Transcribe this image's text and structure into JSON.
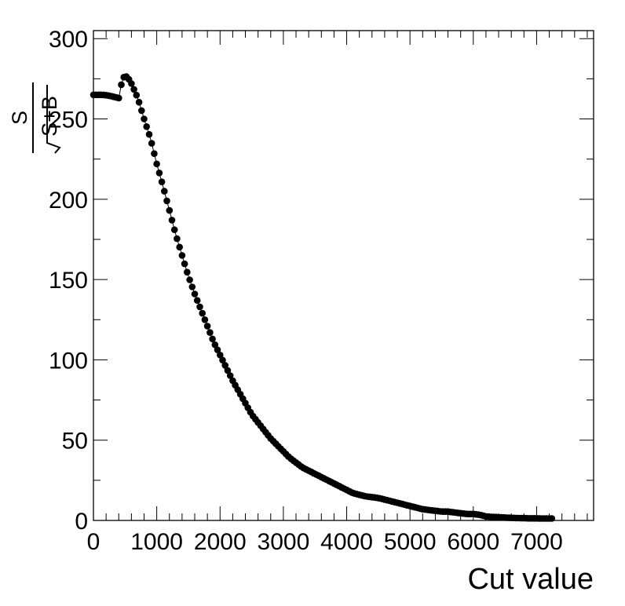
{
  "chart_data": {
    "type": "scatter",
    "xlabel": "Cut value",
    "ylabel_parts": {
      "numerator": "S",
      "denominator": "S+B"
    },
    "xlim": [
      0,
      7900
    ],
    "ylim": [
      0,
      305
    ],
    "x_ticks": [
      0,
      1000,
      2000,
      3000,
      4000,
      5000,
      6000,
      7000
    ],
    "x_tick_labels": [
      "0",
      "1000",
      "2000",
      "3000",
      "4000",
      "5000",
      "6000",
      "7000"
    ],
    "y_ticks": [
      0,
      50,
      100,
      150,
      200,
      250,
      300
    ],
    "y_tick_labels": [
      "0",
      "50",
      "100",
      "150",
      "200",
      "250",
      "300"
    ],
    "grid": false,
    "marker_color": "#000000",
    "curve_points": [
      [
        0,
        265
      ],
      [
        150,
        265
      ],
      [
        250,
        264.5
      ],
      [
        350,
        263.5
      ],
      [
        400,
        263
      ],
      [
        430,
        270
      ],
      [
        460,
        274
      ],
      [
        490,
        277
      ],
      [
        540,
        276
      ],
      [
        600,
        272
      ],
      [
        700,
        263
      ],
      [
        800,
        250
      ],
      [
        900,
        238
      ],
      [
        1000,
        222
      ],
      [
        1100,
        208
      ],
      [
        1200,
        193
      ],
      [
        1300,
        178
      ],
      [
        1400,
        165
      ],
      [
        1500,
        152
      ],
      [
        1600,
        141
      ],
      [
        1700,
        131
      ],
      [
        1800,
        121
      ],
      [
        1900,
        111
      ],
      [
        2000,
        103
      ],
      [
        2100,
        95
      ],
      [
        2200,
        87
      ],
      [
        2300,
        80
      ],
      [
        2400,
        73
      ],
      [
        2500,
        66
      ],
      [
        2600,
        61
      ],
      [
        2700,
        56
      ],
      [
        2800,
        51
      ],
      [
        2900,
        47
      ],
      [
        3000,
        43
      ],
      [
        3100,
        39
      ],
      [
        3200,
        36
      ],
      [
        3300,
        33
      ],
      [
        3400,
        31
      ],
      [
        3500,
        29
      ],
      [
        3600,
        27
      ],
      [
        3700,
        25
      ],
      [
        3800,
        23
      ],
      [
        3900,
        21
      ],
      [
        4000,
        19
      ],
      [
        4100,
        17
      ],
      [
        4200,
        16
      ],
      [
        4300,
        15
      ],
      [
        4400,
        14.5
      ],
      [
        4500,
        14
      ],
      [
        4600,
        13
      ],
      [
        4700,
        12
      ],
      [
        4800,
        11
      ],
      [
        4900,
        10
      ],
      [
        5000,
        9
      ],
      [
        5100,
        8
      ],
      [
        5200,
        7
      ],
      [
        5300,
        6.5
      ],
      [
        5400,
        6
      ],
      [
        5500,
        5.5
      ],
      [
        5600,
        5.5
      ],
      [
        5700,
        5
      ],
      [
        5800,
        4.5
      ],
      [
        5900,
        4
      ],
      [
        6000,
        4
      ],
      [
        6100,
        3.5
      ],
      [
        6200,
        2.5
      ],
      [
        6300,
        2.2
      ],
      [
        6400,
        2
      ],
      [
        6500,
        1.8
      ],
      [
        6600,
        1.6
      ],
      [
        6700,
        1.5
      ],
      [
        6800,
        1.4
      ],
      [
        6900,
        1.3
      ],
      [
        7000,
        1.3
      ],
      [
        7100,
        1.2
      ],
      [
        7200,
        1.2
      ],
      [
        7260,
        1.2
      ]
    ],
    "x_start": 0,
    "x_end": 7260,
    "x_step": 40
  }
}
